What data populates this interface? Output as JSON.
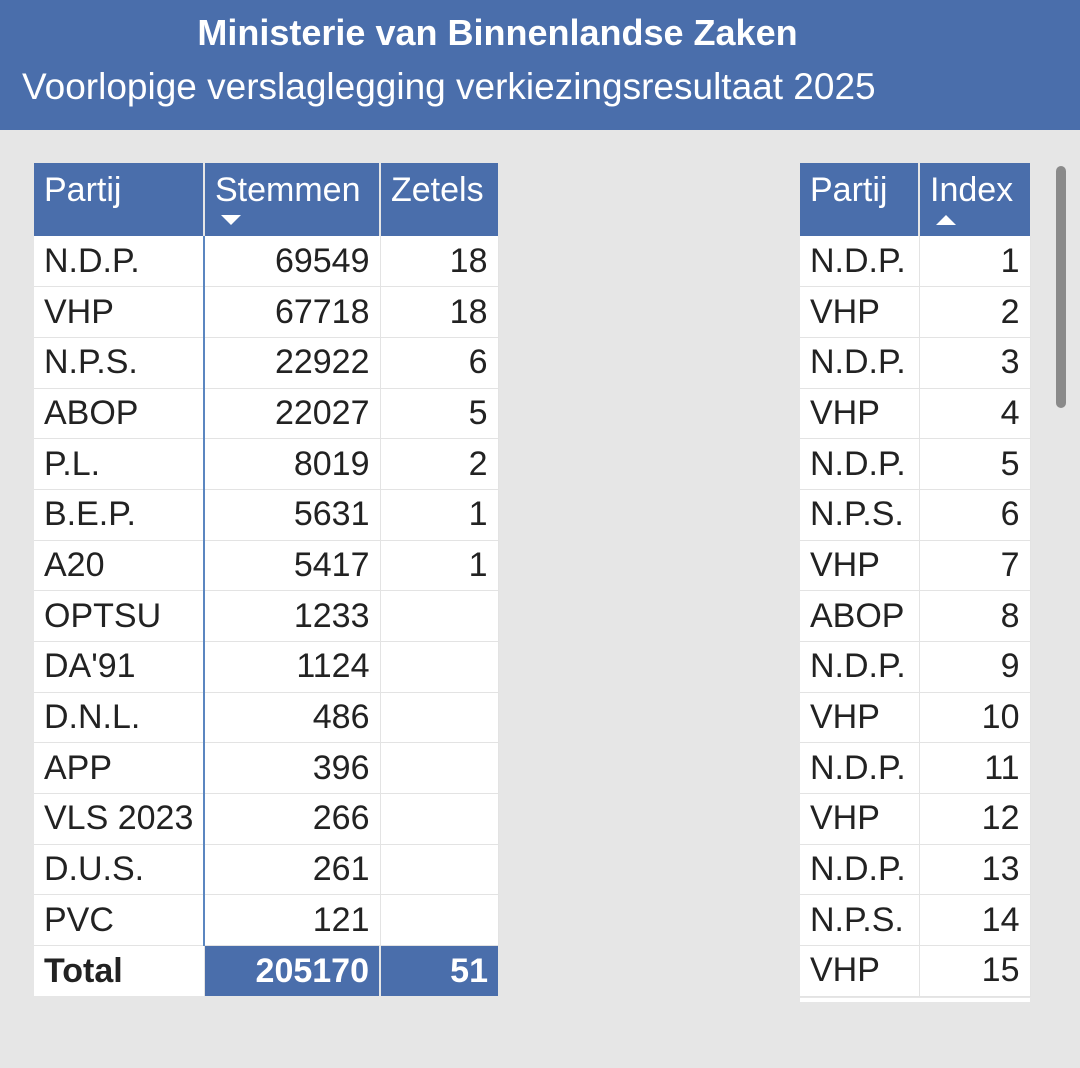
{
  "header": {
    "title": "Ministerie van Binnenlandse Zaken",
    "subtitle": "Voorlopige verslaglegging verkiezingsresultaat 2025"
  },
  "results_table": {
    "columns": [
      "Partij",
      "Stemmen",
      "Zetels"
    ],
    "sort_column": "Stemmen",
    "sort_direction": "descending",
    "rows": [
      [
        "N.D.P.",
        "69549",
        "18"
      ],
      [
        "VHP",
        "67718",
        "18"
      ],
      [
        "N.P.S.",
        "22922",
        "6"
      ],
      [
        "ABOP",
        "22027",
        "5"
      ],
      [
        "P.L.",
        "8019",
        "2"
      ],
      [
        "B.E.P.",
        "5631",
        "1"
      ],
      [
        "A20",
        "5417",
        "1"
      ],
      [
        "OPTSU",
        "1233",
        ""
      ],
      [
        "DA'91",
        "1124",
        ""
      ],
      [
        "D.N.L.",
        "486",
        ""
      ],
      [
        "APP",
        "396",
        ""
      ],
      [
        "VLS 2023",
        "266",
        ""
      ],
      [
        "D.U.S.",
        "261",
        ""
      ],
      [
        "PVC",
        "121",
        ""
      ]
    ],
    "total": [
      "Total",
      "205170",
      "51"
    ]
  },
  "index_table": {
    "columns": [
      "Partij",
      "Index"
    ],
    "sort_column": "Index",
    "sort_direction": "ascending",
    "rows": [
      [
        "N.D.P.",
        "1"
      ],
      [
        "VHP",
        "2"
      ],
      [
        "N.D.P.",
        "3"
      ],
      [
        "VHP",
        "4"
      ],
      [
        "N.D.P.",
        "5"
      ],
      [
        "N.P.S.",
        "6"
      ],
      [
        "VHP",
        "7"
      ],
      [
        "ABOP",
        "8"
      ],
      [
        "N.D.P.",
        "9"
      ],
      [
        "VHP",
        "10"
      ],
      [
        "N.D.P.",
        "11"
      ],
      [
        "VHP",
        "12"
      ],
      [
        "N.D.P.",
        "13"
      ],
      [
        "N.P.S.",
        "14"
      ],
      [
        "VHP",
        "15"
      ]
    ]
  },
  "colors": {
    "header_bg": "#4a6eab",
    "page_bg": "#e6e6e6",
    "scrollbar": "#8a8a8a"
  }
}
